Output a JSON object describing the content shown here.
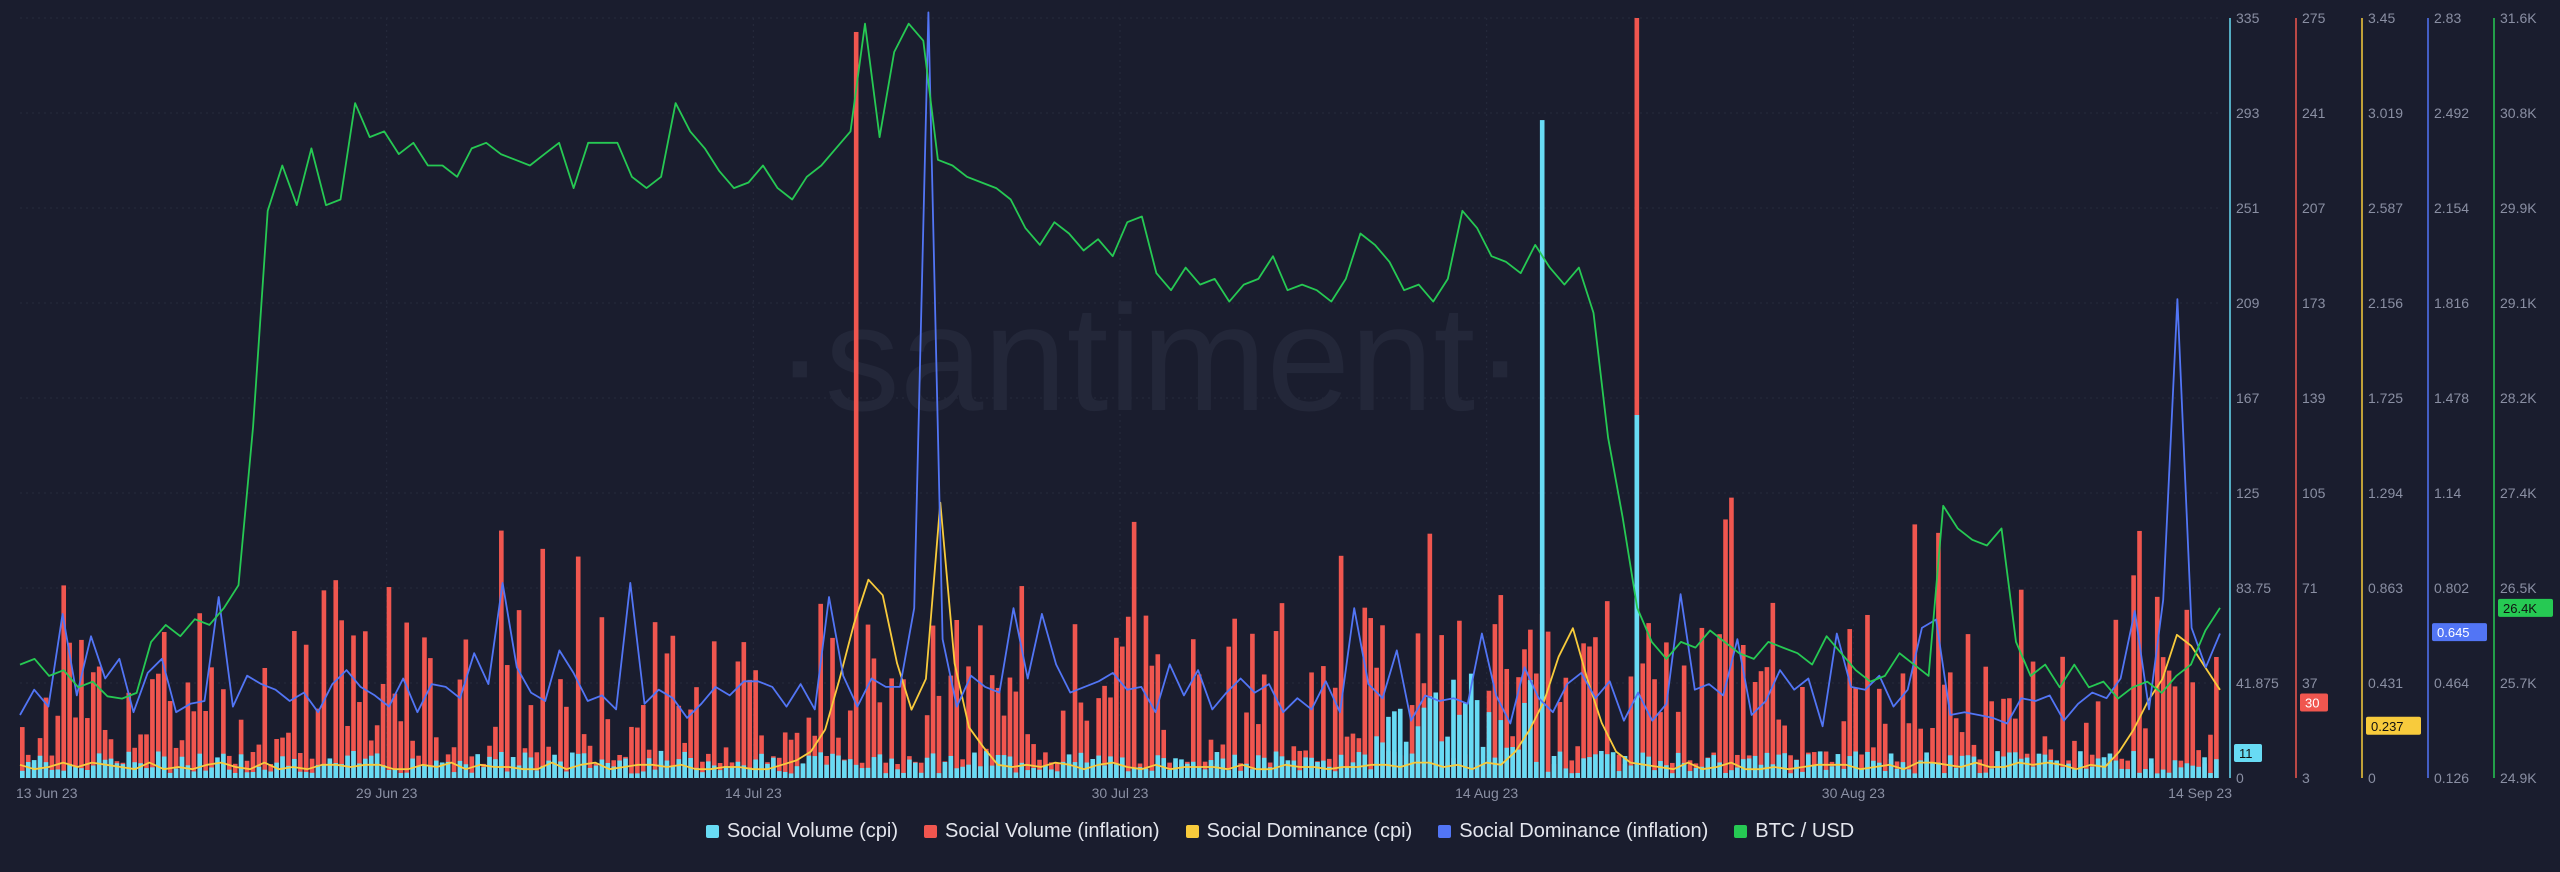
{
  "watermark": "·santiment·",
  "colors": {
    "background": "#1a1d2e",
    "grid": "#262a3c",
    "tick_text": "#8a8fa3",
    "social_volume_cpi": "#68dbf4",
    "social_volume_inflation": "#f0564f",
    "social_dominance_cpi": "#f8cb3c",
    "social_dominance_inflation": "#5275f5",
    "btc_usd": "#26c953"
  },
  "legend": [
    {
      "label": "Social Volume (cpi)",
      "color": "#68dbf4"
    },
    {
      "label": "Social Volume (inflation)",
      "color": "#f0564f"
    },
    {
      "label": "Social Dominance (cpi)",
      "color": "#f8cb3c"
    },
    {
      "label": "Social Dominance (inflation)",
      "color": "#5275f5"
    },
    {
      "label": "BTC / USD",
      "color": "#26c953"
    }
  ],
  "chart_data": {
    "type": "bar",
    "x_ticks": [
      "13 Jun 23",
      "29 Jun 23",
      "14 Jul 23",
      "30 Jul 23",
      "14 Aug 23",
      "30 Aug 23",
      "14 Sep 23"
    ],
    "x_range": [
      "2023-06-13",
      "2023-09-14"
    ],
    "grid": true,
    "legend_position": "bottom",
    "axes": [
      {
        "name": "Social Volume (cpi)",
        "color": "#68dbf4",
        "ticks": [
          "335",
          "293",
          "251",
          "209",
          "167",
          "125",
          "83.75",
          "41.875",
          "0"
        ],
        "ylim": [
          0,
          335
        ],
        "current": "11"
      },
      {
        "name": "Social Volume (inflation)",
        "color": "#f0564f",
        "ticks": [
          "275",
          "241",
          "207",
          "173",
          "139",
          "105",
          "71",
          "37",
          "3"
        ],
        "ylim": [
          3,
          275
        ],
        "current": "30"
      },
      {
        "name": "Social Dominance (cpi)",
        "color": "#f8cb3c",
        "ticks": [
          "3.45",
          "3.019",
          "2.587",
          "2.156",
          "1.725",
          "1.294",
          "0.863",
          "0.431",
          "0"
        ],
        "ylim": [
          0,
          3.45
        ],
        "current": "0.237"
      },
      {
        "name": "Social Dominance (inflation)",
        "color": "#5275f5",
        "ticks": [
          "2.83",
          "2.492",
          "2.154",
          "1.816",
          "1.478",
          "1.14",
          "0.802",
          "0.464",
          "0.126"
        ],
        "ylim": [
          0.126,
          2.83
        ],
        "current": "0.645"
      },
      {
        "name": "BTC / USD",
        "color": "#26c953",
        "ticks": [
          "31.6K",
          "30.8K",
          "29.9K",
          "29.1K",
          "28.2K",
          "27.4K",
          "26.5K",
          "25.7K",
          "24.9K"
        ],
        "ylim": [
          24900,
          31600
        ],
        "current": "26.4K"
      }
    ],
    "series": [
      {
        "name": "BTC / USD",
        "type": "line",
        "axis": 4,
        "values": [
          25900,
          25950,
          25800,
          25850,
          25700,
          25750,
          25620,
          25600,
          25650,
          26100,
          26250,
          26150,
          26300,
          26250,
          26400,
          26600,
          28000,
          29900,
          30300,
          29950,
          30450,
          29950,
          30000,
          30850,
          30550,
          30600,
          30400,
          30500,
          30300,
          30300,
          30200,
          30450,
          30500,
          30400,
          30350,
          30300,
          30400,
          30500,
          30100,
          30500,
          30500,
          30500,
          30200,
          30100,
          30200,
          30850,
          30600,
          30450,
          30250,
          30100,
          30150,
          30300,
          30100,
          30000,
          30200,
          30300,
          30450,
          30600,
          31550,
          30550,
          31300,
          31550,
          31400,
          30350,
          30300,
          30200,
          30150,
          30100,
          30000,
          29750,
          29600,
          29800,
          29700,
          29550,
          29650,
          29500,
          29800,
          29850,
          29350,
          29200,
          29400,
          29250,
          29300,
          29100,
          29250,
          29300,
          29500,
          29200,
          29250,
          29200,
          29100,
          29300,
          29700,
          29600,
          29450,
          29200,
          29250,
          29100,
          29300,
          29900,
          29750,
          29500,
          29450,
          29350,
          29600,
          29400,
          29250,
          29400,
          29000,
          27900,
          27200,
          26400,
          26100,
          25950,
          26100,
          26050,
          26200,
          26100,
          26000,
          25950,
          26100,
          26050,
          26000,
          25900,
          26150,
          26000,
          25850,
          25750,
          25800,
          26000,
          25900,
          25800,
          27300,
          27100,
          27000,
          26950,
          27100,
          26100,
          25800,
          25900,
          25700,
          25900,
          25700,
          25750,
          25600,
          25700,
          25750,
          25650,
          25800,
          25900,
          26200,
          26400
        ]
      },
      {
        "name": "Social Dominance (inflation)",
        "type": "line",
        "axis": 3,
        "values": [
          0.35,
          0.44,
          0.38,
          0.71,
          0.42,
          0.63,
          0.48,
          0.55,
          0.36,
          0.5,
          0.55,
          0.36,
          0.39,
          0.4,
          0.77,
          0.38,
          0.49,
          0.46,
          0.44,
          0.4,
          0.43,
          0.36,
          0.46,
          0.51,
          0.45,
          0.42,
          0.38,
          0.48,
          0.36,
          0.46,
          0.45,
          0.41,
          0.57,
          0.46,
          0.82,
          0.52,
          0.43,
          0.4,
          0.58,
          0.5,
          0.4,
          0.42,
          0.37,
          0.82,
          0.39,
          0.44,
          0.41,
          0.34,
          0.39,
          0.45,
          0.42,
          0.47,
          0.47,
          0.45,
          0.38,
          0.46,
          0.37,
          0.77,
          0.49,
          0.38,
          0.48,
          0.45,
          0.45,
          0.73,
          2.85,
          0.62,
          0.38,
          0.49,
          0.45,
          0.43,
          0.73,
          0.48,
          0.71,
          0.53,
          0.43,
          0.45,
          0.47,
          0.5,
          0.44,
          0.45,
          0.36,
          0.53,
          0.42,
          0.51,
          0.37,
          0.43,
          0.48,
          0.43,
          0.46,
          0.36,
          0.41,
          0.37,
          0.47,
          0.36,
          0.73,
          0.46,
          0.41,
          0.58,
          0.33,
          0.42,
          0.4,
          0.41,
          0.39,
          0.64,
          0.42,
          0.32,
          0.52,
          0.41,
          0.36,
          0.46,
          0.5,
          0.41,
          0.47,
          0.33,
          0.43,
          0.33,
          0.39,
          0.78,
          0.44,
          0.46,
          0.42,
          0.62,
          0.35,
          0.4,
          0.51,
          0.44,
          0.48,
          0.31,
          0.64,
          0.45,
          0.44,
          0.49,
          0.38,
          0.44,
          0.66,
          0.69,
          0.35,
          0.36,
          0.35,
          0.34,
          0.32,
          0.41,
          0.4,
          0.42,
          0.33,
          0.39,
          0.43,
          0.41,
          0.48,
          0.72,
          0.37,
          0.76,
          1.83,
          0.66,
          0.52,
          0.64
        ]
      },
      {
        "name": "Social Dominance (cpi)",
        "type": "line",
        "axis": 2,
        "values": [
          0.06,
          0.04,
          0.05,
          0.07,
          0.05,
          0.07,
          0.06,
          0.05,
          0.04,
          0.07,
          0.04,
          0.05,
          0.04,
          0.06,
          0.07,
          0.05,
          0.04,
          0.07,
          0.04,
          0.05,
          0.04,
          0.06,
          0.06,
          0.05,
          0.06,
          0.06,
          0.04,
          0.04,
          0.06,
          0.05,
          0.07,
          0.04,
          0.06,
          0.05,
          0.05,
          0.04,
          0.04,
          0.07,
          0.04,
          0.06,
          0.07,
          0.04,
          0.05,
          0.06,
          0.06,
          0.05,
          0.06,
          0.04,
          0.04,
          0.05,
          0.05,
          0.04,
          0.04,
          0.06,
          0.08,
          0.12,
          0.22,
          0.45,
          0.7,
          0.9,
          0.83,
          0.52,
          0.31,
          0.45,
          1.25,
          0.52,
          0.23,
          0.14,
          0.06,
          0.05,
          0.06,
          0.05,
          0.07,
          0.06,
          0.04,
          0.06,
          0.07,
          0.05,
          0.04,
          0.06,
          0.04,
          0.05,
          0.05,
          0.05,
          0.04,
          0.06,
          0.04,
          0.04,
          0.06,
          0.05,
          0.05,
          0.04,
          0.05,
          0.05,
          0.06,
          0.06,
          0.05,
          0.07,
          0.07,
          0.05,
          0.06,
          0.04,
          0.07,
          0.06,
          0.12,
          0.22,
          0.35,
          0.55,
          0.68,
          0.45,
          0.25,
          0.12,
          0.07,
          0.06,
          0.05,
          0.04,
          0.07,
          0.04,
          0.05,
          0.07,
          0.04,
          0.04,
          0.05,
          0.04,
          0.05,
          0.06,
          0.06,
          0.06,
          0.04,
          0.05,
          0.06,
          0.04,
          0.07,
          0.07,
          0.06,
          0.05,
          0.07,
          0.05,
          0.05,
          0.07,
          0.06,
          0.07,
          0.06,
          0.04,
          0.06,
          0.05,
          0.12,
          0.22,
          0.35,
          0.45,
          0.65,
          0.6,
          0.5,
          0.4
        ]
      }
    ],
    "notes": "Bars show Social Volume (inflation) and Social Volume (cpi) per day."
  }
}
